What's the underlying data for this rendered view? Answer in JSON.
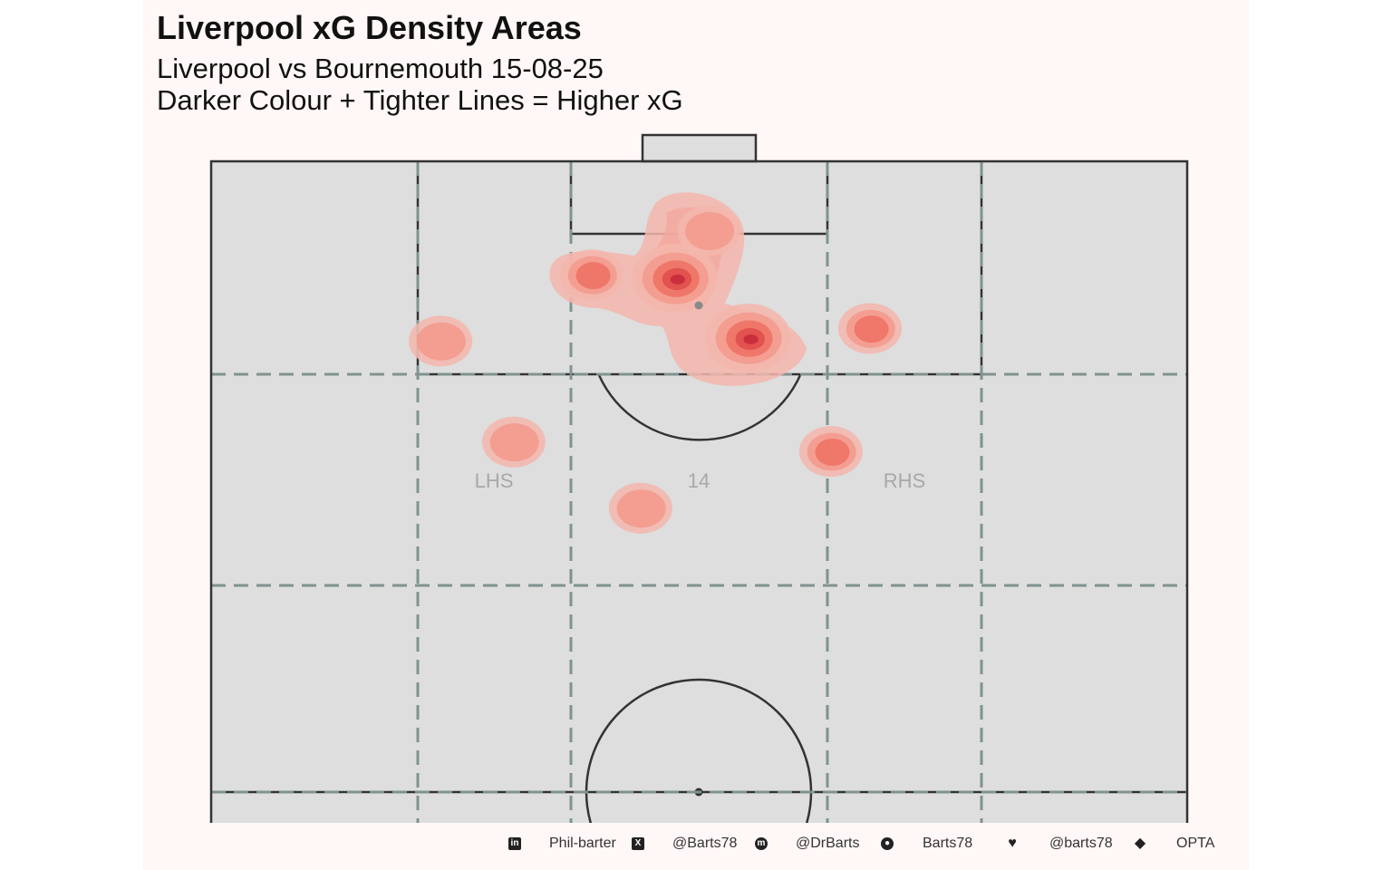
{
  "title": "Liverpool xG Density Areas",
  "subtitle_line1": "Liverpool vs Bournemouth 15-08-25",
  "subtitle_line2": "Darker Colour + Tighter Lines = Higher xG",
  "zone_labels": {
    "left": "LHS",
    "center": "14",
    "right": "RHS"
  },
  "colors": {
    "background": "#fff8f7",
    "pitch": "#dedede",
    "lines": "#333333",
    "zone_lines": "#7f9390",
    "density": [
      "#f3b6ad",
      "#f49a8e",
      "#ee7366",
      "#e04e4d",
      "#c82a3a"
    ]
  },
  "footer": [
    {
      "icon": "linkedin-icon",
      "text": "Phil-barter"
    },
    {
      "icon": "x-icon",
      "text": "@Barts78"
    },
    {
      "icon": "mastodon-icon",
      "text": "@DrBarts"
    },
    {
      "icon": "github-icon",
      "text": "Barts78"
    },
    {
      "icon": "bluesky-icon",
      "text": "@barts78"
    },
    {
      "icon": "dropbox-icon",
      "text": "OPTA"
    }
  ],
  "chart_data": {
    "type": "heatmap",
    "pitch_units": "x 0-100 across pitch, y 0-100 from goal line toward halfway",
    "shot_clusters": [
      {
        "x": 47.5,
        "y": 18.5,
        "levels": 5
      },
      {
        "x": 55.0,
        "y": 28.0,
        "levels": 5
      },
      {
        "x": 39.0,
        "y": 18.0,
        "levels": 3
      },
      {
        "x": 67.5,
        "y": 26.5,
        "levels": 3
      },
      {
        "x": 23.5,
        "y": 28.5,
        "levels": 2
      },
      {
        "x": 31.0,
        "y": 44.5,
        "levels": 2
      },
      {
        "x": 63.5,
        "y": 46.0,
        "levels": 3
      },
      {
        "x": 44.0,
        "y": 55.0,
        "levels": 2
      },
      {
        "x": 51.0,
        "y": 11.0,
        "levels": 2
      }
    ]
  }
}
